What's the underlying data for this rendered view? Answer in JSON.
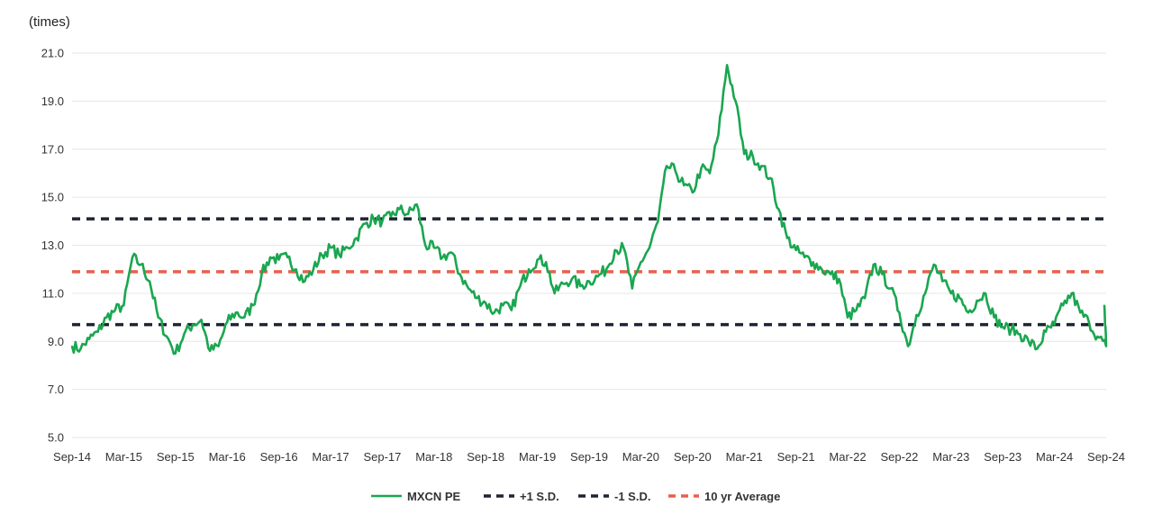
{
  "chart_data": {
    "type": "line",
    "title": "",
    "unit_label": "(times)",
    "xlabel": "",
    "ylabel": "",
    "ylim": [
      5.0,
      21.0
    ],
    "y_ticks": [
      "5.0",
      "7.0",
      "9.0",
      "11.0",
      "13.0",
      "15.0",
      "17.0",
      "19.0",
      "21.0"
    ],
    "x_ticks": [
      "Sep-14",
      "Mar-15",
      "Sep-15",
      "Mar-16",
      "Sep-16",
      "Mar-17",
      "Sep-17",
      "Mar-18",
      "Sep-18",
      "Mar-19",
      "Sep-19",
      "Mar-20",
      "Sep-20",
      "Mar-21",
      "Sep-21",
      "Mar-22",
      "Sep-22",
      "Mar-23",
      "Sep-23",
      "Mar-24",
      "Sep-24"
    ],
    "grid": true,
    "legend_position": "bottom",
    "series": [
      {
        "name": "MXCN PE",
        "color": "#1aa650",
        "style": "solid",
        "points": [
          [
            "Sep-14",
            8.8
          ],
          [
            "Oct-14",
            8.7
          ],
          [
            "Nov-14",
            9.1
          ],
          [
            "Dec-14",
            9.4
          ],
          [
            "Jan-15",
            10.0
          ],
          [
            "Feb-15",
            10.3
          ],
          [
            "Mar-15",
            10.5
          ],
          [
            "Apr-15",
            12.5
          ],
          [
            "May-15",
            12.2
          ],
          [
            "Jun-15",
            11.5
          ],
          [
            "Jul-15",
            10.0
          ],
          [
            "Aug-15",
            9.2
          ],
          [
            "Sep-15",
            8.5
          ],
          [
            "Oct-15",
            9.3
          ],
          [
            "Nov-15",
            9.7
          ],
          [
            "Dec-15",
            9.9
          ],
          [
            "Jan-16",
            8.6
          ],
          [
            "Feb-16",
            8.8
          ],
          [
            "Mar-16",
            9.8
          ],
          [
            "Apr-16",
            10.2
          ],
          [
            "May-16",
            10.0
          ],
          [
            "Jun-16",
            10.5
          ],
          [
            "Jul-16",
            11.8
          ],
          [
            "Aug-16",
            12.5
          ],
          [
            "Sep-16",
            12.4
          ],
          [
            "Oct-16",
            12.5
          ],
          [
            "Nov-16",
            12.0
          ],
          [
            "Dec-16",
            11.5
          ],
          [
            "Jan-17",
            12.0
          ],
          [
            "Feb-17",
            12.6
          ],
          [
            "Mar-17",
            12.9
          ],
          [
            "Apr-17",
            12.6
          ],
          [
            "May-17",
            12.9
          ],
          [
            "Jun-17",
            13.3
          ],
          [
            "Jul-17",
            13.9
          ],
          [
            "Aug-17",
            14.1
          ],
          [
            "Sep-17",
            14.0
          ],
          [
            "Oct-17",
            14.2
          ],
          [
            "Nov-17",
            14.5
          ],
          [
            "Dec-17",
            14.3
          ],
          [
            "Jan-18",
            14.7
          ],
          [
            "Feb-18",
            13.0
          ],
          [
            "Mar-18",
            12.9
          ],
          [
            "Apr-18",
            12.5
          ],
          [
            "May-18",
            12.7
          ],
          [
            "Jun-18",
            11.8
          ],
          [
            "Jul-18",
            11.2
          ],
          [
            "Aug-18",
            10.8
          ],
          [
            "Sep-18",
            10.6
          ],
          [
            "Oct-18",
            10.2
          ],
          [
            "Nov-18",
            10.5
          ],
          [
            "Dec-18",
            10.3
          ],
          [
            "Jan-19",
            11.3
          ],
          [
            "Feb-19",
            12.0
          ],
          [
            "Mar-19",
            12.4
          ],
          [
            "Apr-19",
            12.3
          ],
          [
            "May-19",
            11.0
          ],
          [
            "Jun-19",
            11.4
          ],
          [
            "Jul-19",
            11.6
          ],
          [
            "Aug-19",
            11.3
          ],
          [
            "Sep-19",
            11.5
          ],
          [
            "Oct-19",
            11.7
          ],
          [
            "Nov-19",
            12.0
          ],
          [
            "Dec-19",
            12.8
          ],
          [
            "Jan-20",
            12.9
          ],
          [
            "Feb-20",
            11.2
          ],
          [
            "Mar-20",
            12.3
          ],
          [
            "Apr-20",
            12.9
          ],
          [
            "May-20",
            14.0
          ],
          [
            "Jun-20",
            16.3
          ],
          [
            "Jul-20",
            16.1
          ],
          [
            "Aug-20",
            15.5
          ],
          [
            "Sep-20",
            15.2
          ],
          [
            "Oct-20",
            16.2
          ],
          [
            "Nov-20",
            16.0
          ],
          [
            "Dec-20",
            17.6
          ],
          [
            "Jan-21",
            20.5
          ],
          [
            "Feb-21",
            19.0
          ],
          [
            "Mar-21",
            16.8
          ],
          [
            "Apr-21",
            16.7
          ],
          [
            "May-21",
            16.3
          ],
          [
            "Jun-21",
            15.8
          ],
          [
            "Jul-21",
            14.5
          ],
          [
            "Aug-21",
            13.3
          ],
          [
            "Sep-21",
            12.8
          ],
          [
            "Oct-21",
            12.5
          ],
          [
            "Nov-21",
            12.3
          ],
          [
            "Dec-21",
            12.0
          ],
          [
            "Jan-22",
            11.8
          ],
          [
            "Feb-22",
            11.6
          ],
          [
            "Mar-22",
            10.0
          ],
          [
            "Apr-22",
            10.3
          ],
          [
            "May-22",
            10.8
          ],
          [
            "Jun-22",
            12.2
          ],
          [
            "Jul-22",
            11.8
          ],
          [
            "Aug-22",
            11.2
          ],
          [
            "Sep-22",
            10.2
          ],
          [
            "Oct-22",
            8.8
          ],
          [
            "Nov-22",
            10.1
          ],
          [
            "Dec-22",
            11.0
          ],
          [
            "Jan-23",
            12.2
          ],
          [
            "Feb-23",
            11.5
          ],
          [
            "Mar-23",
            11.0
          ],
          [
            "Apr-23",
            10.8
          ],
          [
            "May-23",
            10.2
          ],
          [
            "Jun-23",
            10.7
          ],
          [
            "Jul-23",
            11.0
          ],
          [
            "Aug-23",
            10.0
          ],
          [
            "Sep-23",
            9.6
          ],
          [
            "Oct-23",
            9.5
          ],
          [
            "Nov-23",
            9.3
          ],
          [
            "Dec-23",
            9.0
          ],
          [
            "Jan-24",
            8.7
          ],
          [
            "Feb-24",
            9.4
          ],
          [
            "Mar-24",
            9.7
          ],
          [
            "Apr-24",
            10.5
          ],
          [
            "May-24",
            11.0
          ],
          [
            "Jun-24",
            10.2
          ],
          [
            "Jul-24",
            9.8
          ],
          [
            "Aug-24",
            9.2
          ],
          [
            "Sep-24",
            8.8
          ],
          [
            "Sep-24 end",
            10.5
          ]
        ]
      },
      {
        "name": "+1 S.D.",
        "color": "#1f2433",
        "style": "dashed",
        "value": 14.1
      },
      {
        "name": "-1 S.D.",
        "color": "#1f2433",
        "style": "dashed",
        "value": 9.7
      },
      {
        "name": "10 yr Average",
        "color": "#e8604c",
        "style": "dashed",
        "value": 11.9
      }
    ]
  }
}
